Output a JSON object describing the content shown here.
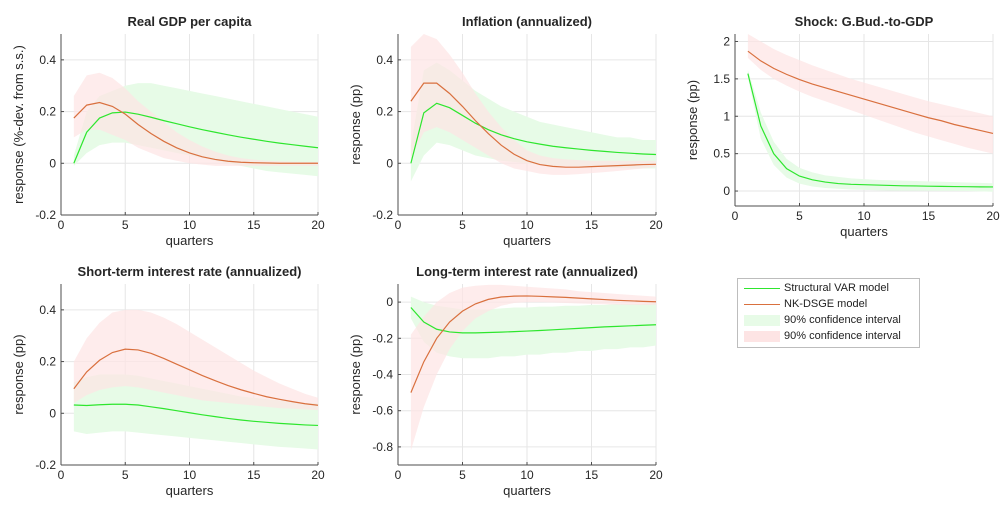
{
  "colors": {
    "svar_line": "#2ee62e",
    "dsge_line": "#d9703e",
    "svar_band": "#e7fbe7",
    "dsge_band": "#fde4e4",
    "overlap_band": "#efe6d6",
    "grid": "#e6e6e6",
    "axis": "#4d4d4d"
  },
  "legend": {
    "items": [
      {
        "label": "Structural VAR model",
        "kind": "line",
        "color_key": "svar_line"
      },
      {
        "label": "NK-DSGE model",
        "kind": "line",
        "color_key": "dsge_line"
      },
      {
        "label": "90% confidence interval",
        "kind": "band",
        "color_key": "svar_band"
      },
      {
        "label": "90% confidence interval",
        "kind": "band",
        "color_key": "dsge_band"
      }
    ]
  },
  "chart_data": [
    {
      "type": "line",
      "title": "Real GDP per capita",
      "xlabel": "quarters",
      "ylabel": "response (%-dev. from s.s.)",
      "xlim": [
        0,
        20
      ],
      "ylim": [
        -0.2,
        0.5
      ],
      "xticks": [
        0,
        5,
        10,
        15,
        20
      ],
      "yticks": [
        -0.2,
        0,
        0.2,
        0.4
      ],
      "xtick_labels": [
        "0",
        "5",
        "10",
        "15",
        "20"
      ],
      "ytick_labels": [
        "-0.2",
        "0",
        "0.2",
        "0.4"
      ],
      "grid": true,
      "x": [
        1,
        2,
        3,
        4,
        5,
        6,
        7,
        8,
        9,
        10,
        11,
        12,
        13,
        14,
        15,
        16,
        17,
        18,
        19,
        20
      ],
      "series": [
        {
          "name": "Structural VAR model",
          "color_key": "svar_line",
          "values": [
            0.0,
            0.12,
            0.175,
            0.195,
            0.198,
            0.19,
            0.178,
            0.165,
            0.153,
            0.141,
            0.13,
            0.12,
            0.11,
            0.101,
            0.093,
            0.085,
            0.078,
            0.072,
            0.066,
            0.06
          ],
          "band_lower": [
            -0.01,
            0.04,
            0.07,
            0.08,
            0.08,
            0.07,
            0.06,
            0.05,
            0.04,
            0.03,
            0.02,
            0.01,
            0.0,
            -0.01,
            -0.02,
            -0.03,
            -0.035,
            -0.04,
            -0.045,
            -0.05
          ],
          "band_upper": [
            0.03,
            0.2,
            0.26,
            0.28,
            0.3,
            0.31,
            0.31,
            0.3,
            0.29,
            0.28,
            0.27,
            0.26,
            0.25,
            0.24,
            0.23,
            0.22,
            0.21,
            0.2,
            0.19,
            0.18
          ]
        },
        {
          "name": "NK-DSGE model",
          "color_key": "dsge_line",
          "values": [
            0.175,
            0.225,
            0.235,
            0.22,
            0.19,
            0.15,
            0.115,
            0.085,
            0.06,
            0.04,
            0.025,
            0.015,
            0.008,
            0.004,
            0.002,
            0.001,
            0.0,
            0.0,
            0.0,
            0.0
          ],
          "band_lower": [
            0.1,
            0.13,
            0.13,
            0.11,
            0.09,
            0.06,
            0.04,
            0.02,
            0.01,
            0.0,
            -0.005,
            -0.01,
            -0.01,
            -0.01,
            -0.01,
            -0.01,
            -0.01,
            -0.01,
            -0.01,
            -0.01
          ],
          "band_upper": [
            0.26,
            0.34,
            0.35,
            0.33,
            0.29,
            0.24,
            0.2,
            0.16,
            0.12,
            0.09,
            0.065,
            0.045,
            0.03,
            0.02,
            0.014,
            0.01,
            0.008,
            0.006,
            0.005,
            0.005
          ]
        }
      ]
    },
    {
      "type": "line",
      "title": "Inflation (annualized)",
      "xlabel": "quarters",
      "ylabel": "response (pp)",
      "xlim": [
        0,
        20
      ],
      "ylim": [
        -0.2,
        0.5
      ],
      "xticks": [
        0,
        5,
        10,
        15,
        20
      ],
      "yticks": [
        -0.2,
        0,
        0.2,
        0.4
      ],
      "xtick_labels": [
        "0",
        "5",
        "10",
        "15",
        "20"
      ],
      "ytick_labels": [
        "-0.2",
        "0",
        "0.2",
        "0.4"
      ],
      "grid": true,
      "x": [
        1,
        2,
        3,
        4,
        5,
        6,
        7,
        8,
        9,
        10,
        11,
        12,
        13,
        14,
        15,
        16,
        17,
        18,
        19,
        20
      ],
      "series": [
        {
          "name": "Structural VAR model",
          "color_key": "svar_line",
          "values": [
            0.0,
            0.195,
            0.232,
            0.215,
            0.185,
            0.155,
            0.13,
            0.11,
            0.095,
            0.083,
            0.074,
            0.066,
            0.06,
            0.055,
            0.05,
            0.046,
            0.042,
            0.039,
            0.036,
            0.034
          ],
          "band_lower": [
            -0.07,
            0.03,
            0.08,
            0.07,
            0.05,
            0.03,
            0.02,
            0.01,
            0.005,
            0.0,
            -0.005,
            -0.01,
            -0.01,
            -0.012,
            -0.014,
            -0.016,
            -0.018,
            -0.02,
            -0.02,
            -0.02
          ],
          "band_upper": [
            0.07,
            0.36,
            0.39,
            0.36,
            0.32,
            0.28,
            0.25,
            0.22,
            0.2,
            0.18,
            0.16,
            0.15,
            0.14,
            0.13,
            0.12,
            0.11,
            0.1,
            0.1,
            0.09,
            0.09
          ]
        },
        {
          "name": "NK-DSGE model",
          "color_key": "dsge_line",
          "values": [
            0.24,
            0.31,
            0.31,
            0.27,
            0.22,
            0.165,
            0.115,
            0.07,
            0.035,
            0.01,
            -0.005,
            -0.012,
            -0.015,
            -0.015,
            -0.013,
            -0.011,
            -0.009,
            -0.007,
            -0.005,
            -0.004
          ],
          "band_lower": [
            0.02,
            0.12,
            0.14,
            0.12,
            0.09,
            0.06,
            0.03,
            0.0,
            -0.02,
            -0.03,
            -0.04,
            -0.045,
            -0.045,
            -0.042,
            -0.038,
            -0.034,
            -0.03,
            -0.025,
            -0.02,
            -0.015
          ],
          "band_upper": [
            0.45,
            0.5,
            0.48,
            0.42,
            0.35,
            0.27,
            0.2,
            0.14,
            0.09,
            0.05,
            0.03,
            0.02,
            0.015,
            0.012,
            0.01,
            0.01,
            0.01,
            0.01,
            0.01,
            0.01
          ]
        }
      ]
    },
    {
      "type": "line",
      "title": "Shock: G.Bud.-to-GDP",
      "xlabel": "quarters",
      "ylabel": "response (pp)",
      "xlim": [
        0,
        20
      ],
      "ylim": [
        -0.2,
        2.1
      ],
      "xticks": [
        0,
        5,
        10,
        15,
        20
      ],
      "yticks": [
        0,
        0.5,
        1,
        1.5,
        2
      ],
      "xtick_labels": [
        "0",
        "5",
        "10",
        "15",
        "20"
      ],
      "ytick_labels": [
        "0",
        "0.5",
        "1",
        "1.5",
        "2"
      ],
      "grid": true,
      "x": [
        1,
        2,
        3,
        4,
        5,
        6,
        7,
        8,
        9,
        10,
        11,
        12,
        13,
        14,
        15,
        16,
        17,
        18,
        19,
        20
      ],
      "series": [
        {
          "name": "Structural VAR model",
          "color_key": "svar_line",
          "values": [
            1.57,
            0.87,
            0.5,
            0.3,
            0.2,
            0.15,
            0.12,
            0.1,
            0.09,
            0.085,
            0.08,
            0.075,
            0.07,
            0.068,
            0.065,
            0.062,
            0.06,
            0.058,
            0.056,
            0.055
          ],
          "band_lower": [
            1.52,
            0.7,
            0.35,
            0.18,
            0.1,
            0.06,
            0.04,
            0.03,
            0.02,
            0.015,
            0.01,
            0.008,
            0.006,
            0.005,
            0.004,
            0.003,
            0.002,
            0.0,
            -0.005,
            -0.01
          ],
          "band_upper": [
            1.62,
            1.05,
            0.66,
            0.43,
            0.31,
            0.25,
            0.21,
            0.19,
            0.17,
            0.16,
            0.15,
            0.145,
            0.14,
            0.135,
            0.13,
            0.125,
            0.12,
            0.115,
            0.11,
            0.105
          ]
        },
        {
          "name": "NK-DSGE model",
          "color_key": "dsge_line",
          "values": [
            1.87,
            1.74,
            1.64,
            1.56,
            1.49,
            1.43,
            1.38,
            1.33,
            1.28,
            1.23,
            1.18,
            1.13,
            1.08,
            1.03,
            0.98,
            0.94,
            0.89,
            0.85,
            0.81,
            0.77
          ],
          "band_lower": [
            1.78,
            1.62,
            1.5,
            1.41,
            1.33,
            1.26,
            1.2,
            1.14,
            1.08,
            1.02,
            0.96,
            0.9,
            0.84,
            0.78,
            0.73,
            0.68,
            0.63,
            0.58,
            0.54,
            0.5
          ],
          "band_upper": [
            2.1,
            2.0,
            1.9,
            1.82,
            1.75,
            1.68,
            1.62,
            1.56,
            1.5,
            1.45,
            1.4,
            1.35,
            1.3,
            1.25,
            1.2,
            1.16,
            1.12,
            1.08,
            1.04,
            1.0
          ]
        }
      ]
    },
    {
      "type": "line",
      "title": "Short-term interest rate (annualized)",
      "xlabel": "quarters",
      "ylabel": "response (pp)",
      "xlim": [
        0,
        20
      ],
      "ylim": [
        -0.2,
        0.5
      ],
      "xticks": [
        0,
        5,
        10,
        15,
        20
      ],
      "yticks": [
        -0.2,
        0,
        0.2,
        0.4
      ],
      "xtick_labels": [
        "0",
        "5",
        "10",
        "15",
        "20"
      ],
      "ytick_labels": [
        "-0.2",
        "0",
        "0.2",
        "0.4"
      ],
      "grid": true,
      "x": [
        1,
        2,
        3,
        4,
        5,
        6,
        7,
        8,
        9,
        10,
        11,
        12,
        13,
        14,
        15,
        16,
        17,
        18,
        19,
        20
      ],
      "series": [
        {
          "name": "Structural VAR model",
          "color_key": "svar_line",
          "values": [
            0.032,
            0.03,
            0.033,
            0.035,
            0.035,
            0.032,
            0.025,
            0.018,
            0.01,
            0.002,
            -0.006,
            -0.013,
            -0.02,
            -0.026,
            -0.031,
            -0.035,
            -0.039,
            -0.042,
            -0.045,
            -0.047
          ],
          "band_lower": [
            -0.07,
            -0.08,
            -0.075,
            -0.07,
            -0.07,
            -0.075,
            -0.08,
            -0.085,
            -0.09,
            -0.095,
            -0.1,
            -0.105,
            -0.11,
            -0.115,
            -0.12,
            -0.125,
            -0.13,
            -0.133,
            -0.136,
            -0.14
          ],
          "band_upper": [
            0.12,
            0.14,
            0.15,
            0.15,
            0.15,
            0.145,
            0.135,
            0.125,
            0.115,
            0.105,
            0.095,
            0.085,
            0.075,
            0.065,
            0.06,
            0.055,
            0.05,
            0.045,
            0.04,
            0.04
          ]
        },
        {
          "name": "NK-DSGE model",
          "color_key": "dsge_line",
          "values": [
            0.095,
            0.16,
            0.205,
            0.235,
            0.248,
            0.245,
            0.232,
            0.212,
            0.19,
            0.168,
            0.146,
            0.126,
            0.107,
            0.091,
            0.077,
            0.064,
            0.054,
            0.045,
            0.037,
            0.031
          ],
          "band_lower": [
            0.04,
            0.07,
            0.09,
            0.1,
            0.105,
            0.1,
            0.09,
            0.08,
            0.07,
            0.06,
            0.05,
            0.045,
            0.04,
            0.035,
            0.03,
            0.025,
            0.02,
            0.018,
            0.015,
            0.012
          ],
          "band_upper": [
            0.2,
            0.29,
            0.35,
            0.39,
            0.4,
            0.4,
            0.39,
            0.37,
            0.345,
            0.315,
            0.285,
            0.255,
            0.225,
            0.195,
            0.165,
            0.14,
            0.115,
            0.095,
            0.075,
            0.06
          ]
        }
      ]
    },
    {
      "type": "line",
      "title": "Long-term interest rate (annualized)",
      "xlabel": "quarters",
      "ylabel": "response (pp)",
      "xlim": [
        0,
        20
      ],
      "ylim": [
        -0.9,
        0.1
      ],
      "xticks": [
        0,
        5,
        10,
        15,
        20
      ],
      "yticks": [
        -0.8,
        -0.6,
        -0.4,
        -0.2,
        0
      ],
      "xtick_labels": [
        "0",
        "5",
        "10",
        "15",
        "20"
      ],
      "ytick_labels": [
        "-0.8",
        "-0.6",
        "-0.4",
        "-0.2",
        "0"
      ],
      "grid": true,
      "x": [
        1,
        2,
        3,
        4,
        5,
        6,
        7,
        8,
        9,
        10,
        11,
        12,
        13,
        14,
        15,
        16,
        17,
        18,
        19,
        20
      ],
      "series": [
        {
          "name": "Structural VAR model",
          "color_key": "svar_line",
          "values": [
            -0.03,
            -0.11,
            -0.15,
            -0.165,
            -0.17,
            -0.17,
            -0.168,
            -0.166,
            -0.163,
            -0.16,
            -0.157,
            -0.153,
            -0.149,
            -0.145,
            -0.141,
            -0.137,
            -0.134,
            -0.131,
            -0.128,
            -0.125
          ],
          "band_lower": [
            -0.09,
            -0.22,
            -0.28,
            -0.3,
            -0.31,
            -0.31,
            -0.31,
            -0.3,
            -0.3,
            -0.29,
            -0.29,
            -0.28,
            -0.28,
            -0.27,
            -0.27,
            -0.26,
            -0.26,
            -0.25,
            -0.25,
            -0.24
          ],
          "band_upper": [
            0.03,
            0.0,
            -0.02,
            -0.03,
            -0.04,
            -0.04,
            -0.04,
            -0.035,
            -0.03,
            -0.03,
            -0.025,
            -0.025,
            -0.02,
            -0.02,
            -0.015,
            -0.015,
            -0.01,
            -0.01,
            -0.01,
            -0.005
          ]
        },
        {
          "name": "NK-DSGE model",
          "color_key": "dsge_line",
          "values": [
            -0.5,
            -0.33,
            -0.2,
            -0.11,
            -0.05,
            -0.01,
            0.015,
            0.028,
            0.033,
            0.034,
            0.032,
            0.029,
            0.026,
            0.022,
            0.018,
            0.014,
            0.01,
            0.007,
            0.004,
            0.002
          ],
          "band_lower": [
            -0.82,
            -0.58,
            -0.4,
            -0.26,
            -0.16,
            -0.09,
            -0.05,
            -0.02,
            -0.005,
            0.0,
            0.0,
            -0.002,
            -0.005,
            -0.008,
            -0.01,
            -0.012,
            -0.014,
            -0.015,
            -0.016,
            -0.016
          ],
          "band_upper": [
            -0.18,
            -0.08,
            0.0,
            0.05,
            0.08,
            0.09,
            0.095,
            0.095,
            0.09,
            0.085,
            0.08,
            0.075,
            0.07,
            0.06,
            0.055,
            0.05,
            0.045,
            0.04,
            0.035,
            0.03
          ]
        }
      ]
    }
  ]
}
